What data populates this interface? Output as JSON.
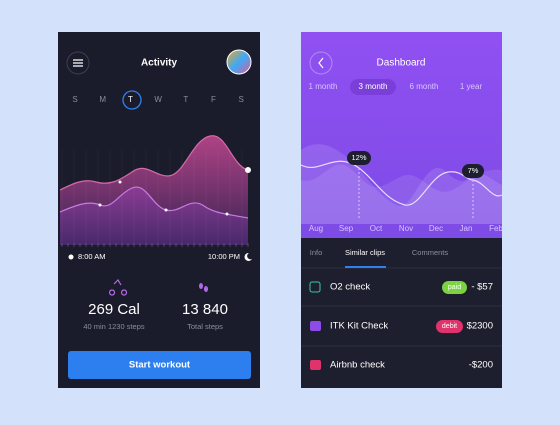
{
  "left": {
    "header": {
      "title": "Activity"
    },
    "weekdays": [
      "S",
      "M",
      "T",
      "W",
      "T",
      "F",
      "S"
    ],
    "time_start": "8:00 AM",
    "time_end": "10:00 PM",
    "stats": [
      {
        "value": "269 Cal",
        "label": "40 min 1230 steps"
      },
      {
        "value": "13 840",
        "label": "Total steps"
      }
    ],
    "button": "Start workout"
  },
  "right": {
    "header": {
      "title": "Dashboard"
    },
    "periods": [
      "1 month",
      "3 month",
      "6 month",
      "1 year"
    ],
    "callouts": [
      "12%",
      "7%"
    ],
    "months": [
      "Aug",
      "Sep",
      "Oct",
      "Nov",
      "Dec",
      "Jan",
      "Feb"
    ],
    "tabs": [
      "Info",
      "Similar clips",
      "Comments"
    ],
    "rows": [
      {
        "name": "O2 check",
        "tag": "paid",
        "amount": "- $57"
      },
      {
        "name": "ITK Kit Check",
        "tag": "debit",
        "amount": "$2300"
      },
      {
        "name": "Airbnb check",
        "amount": "-$200"
      }
    ]
  }
}
